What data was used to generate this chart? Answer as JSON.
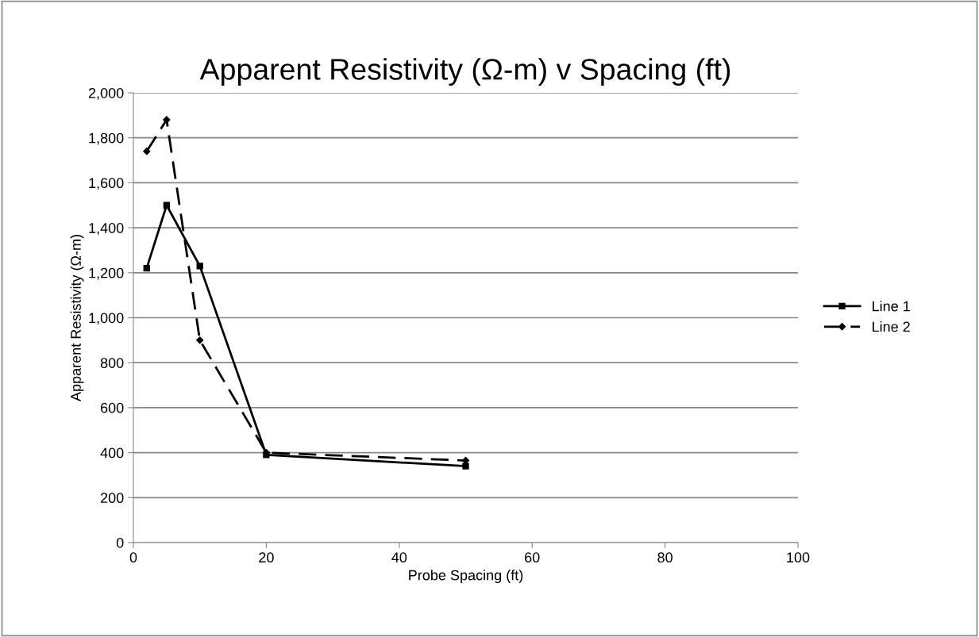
{
  "chart_data": {
    "type": "line",
    "title": "Apparent Resistivity (Ω-m) v Spacing (ft)",
    "xlabel": "Probe Spacing (ft)",
    "ylabel": "Apparent Resistivity (Ω-m)",
    "x": [
      2,
      5,
      10,
      20,
      50
    ],
    "series": [
      {
        "name": "Line 1",
        "color": "#000000",
        "values": [
          1220,
          1500,
          1230,
          390,
          340
        ],
        "marker": "square",
        "line_style": "solid"
      },
      {
        "name": "Line 2",
        "color": "#000000",
        "values": [
          1740,
          1880,
          900,
          400,
          365
        ],
        "marker": "diamond",
        "line_style": "dashed"
      }
    ],
    "xlim": [
      0,
      100
    ],
    "xticks": [
      0,
      20,
      40,
      60,
      80,
      100
    ],
    "ylim": [
      0,
      2000
    ],
    "yticks": [
      0,
      200,
      400,
      600,
      800,
      {
        "value": 1000,
        "label": "1,000"
      },
      {
        "value": 1200,
        "label": "1,200"
      },
      {
        "value": 1400,
        "label": "1,400"
      },
      {
        "value": 1600,
        "label": "1,600"
      },
      {
        "value": 1800,
        "label": "1,800"
      },
      {
        "value": 2000,
        "label": "2,000"
      }
    ],
    "grid": "y",
    "legend": "right"
  }
}
